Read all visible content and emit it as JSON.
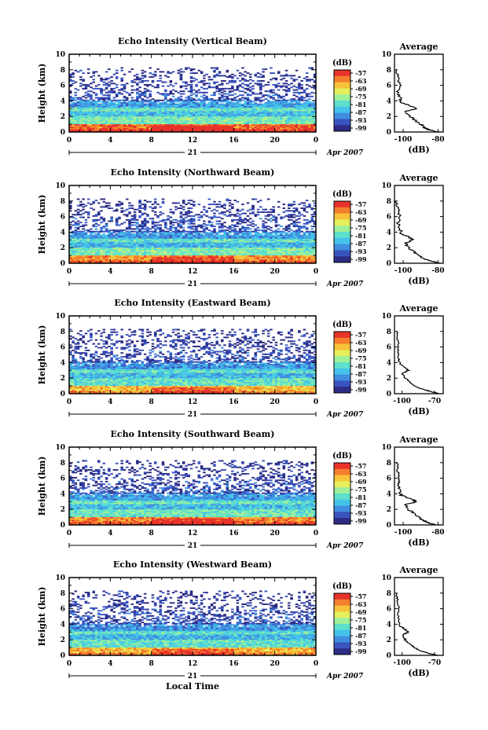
{
  "colors": {
    "scale": [
      "#2c2c85",
      "#3a54bf",
      "#3f8ee0",
      "#44c3ea",
      "#5ee0cc",
      "#9ff09a",
      "#e6ef5c",
      "#f7c23a",
      "#f57e2c",
      "#e8332a"
    ],
    "line": "#000000",
    "background": "#ffffff"
  },
  "chart_data": [
    {
      "type": "heatmap",
      "title": "Echo Intensity (Vertical Beam)",
      "ylabel": "Height (km)",
      "ylim": [
        0,
        10
      ],
      "yticks": [
        "0",
        "2",
        "4",
        "6",
        "8",
        "10"
      ],
      "xlim": [
        0,
        24
      ],
      "xticks": [
        "0",
        "4",
        "8",
        "12",
        "16",
        "20",
        "0"
      ],
      "date_day": "21",
      "date_month": "Apr 2007",
      "colorbar": {
        "unit": "(dB)",
        "ticks": [
          "-57",
          "-63",
          "-69",
          "-75",
          "-81",
          "-87",
          "-93",
          "-99"
        ]
      },
      "heights_km": [
        0.5,
        1.5,
        2.5,
        3.5,
        4.5,
        5.5,
        6.5,
        7.5
      ],
      "intensity_db_by_height": [
        -60,
        -78,
        -85,
        -88,
        -95,
        -97,
        -97,
        -98
      ],
      "average_profile": {
        "title": "Average",
        "xlabel": "(dB)",
        "xticks": [
          "-100",
          "-80"
        ],
        "xlim": [
          -105,
          -77
        ],
        "yticks": [
          "0",
          "2",
          "4",
          "6",
          "8",
          "10"
        ],
        "ylim": [
          0,
          10
        ],
        "height_km": [
          0,
          0.3,
          0.6,
          1.0,
          1.5,
          2.0,
          2.6,
          3.0,
          3.4,
          3.8,
          4.5,
          5.2,
          6.0,
          7.0,
          8.0
        ],
        "db": [
          -80,
          -85,
          -88,
          -90,
          -93,
          -96,
          -99,
          -93,
          -96,
          -101,
          -102,
          -103,
          -102,
          -103,
          -104
        ]
      }
    },
    {
      "type": "heatmap",
      "title": "Echo Intensity (Northward Beam)",
      "ylabel": "Height (km)",
      "ylim": [
        0,
        10
      ],
      "yticks": [
        "0",
        "2",
        "4",
        "6",
        "8",
        "10"
      ],
      "xlim": [
        0,
        24
      ],
      "xticks": [
        "0",
        "4",
        "8",
        "12",
        "16",
        "20",
        "0"
      ],
      "date_day": "21",
      "date_month": "Apr 2007",
      "colorbar": {
        "unit": "(dB)",
        "ticks": [
          "-57",
          "-63",
          "-69",
          "-75",
          "-81",
          "-87",
          "-93",
          "-99"
        ]
      },
      "heights_km": [
        0.5,
        1.5,
        2.5,
        3.5,
        4.5,
        5.5,
        6.5,
        7.5
      ],
      "intensity_db_by_height": [
        -63,
        -78,
        -86,
        -88,
        -95,
        -96,
        -97,
        -98
      ],
      "average_profile": {
        "title": "Average",
        "xlabel": "(dB)",
        "xticks": [
          "-100",
          "-80"
        ],
        "xlim": [
          -105,
          -77
        ],
        "yticks": [
          "0",
          "2",
          "4",
          "6",
          "8",
          "10"
        ],
        "ylim": [
          0,
          10
        ],
        "height_km": [
          0,
          0.3,
          0.6,
          1.0,
          1.5,
          2.0,
          2.6,
          3.0,
          3.4,
          3.8,
          4.5,
          5.2,
          6.0,
          7.0,
          8.0
        ],
        "db": [
          -79,
          -84,
          -88,
          -91,
          -94,
          -97,
          -99,
          -94,
          -97,
          -101,
          -102,
          -103,
          -102,
          -103,
          -104
        ]
      }
    },
    {
      "type": "heatmap",
      "title": "Echo Intensity (Eastward Beam)",
      "ylabel": "Height (km)",
      "ylim": [
        0,
        10
      ],
      "yticks": [
        "0",
        "2",
        "4",
        "6",
        "8",
        "10"
      ],
      "xlim": [
        0,
        24
      ],
      "xticks": [
        "0",
        "4",
        "8",
        "12",
        "16",
        "20",
        "0"
      ],
      "date_day": "21",
      "date_month": "Apr 2007",
      "colorbar": {
        "unit": "(dB)",
        "ticks": [
          "-57",
          "-63",
          "-69",
          "-75",
          "-81",
          "-87",
          "-93",
          "-99"
        ]
      },
      "heights_km": [
        0.5,
        1.5,
        2.5,
        3.5,
        4.5,
        5.5,
        6.5,
        7.5
      ],
      "intensity_db_by_height": [
        -66,
        -80,
        -86,
        -89,
        -95,
        -96,
        -97,
        -98
      ],
      "average_profile": {
        "title": "Average",
        "xlabel": "(dB)",
        "xticks": [
          "-100",
          "-70"
        ],
        "xlim": [
          -107,
          -62
        ],
        "yticks": [
          "0",
          "2",
          "4",
          "6",
          "8",
          "10"
        ],
        "ylim": [
          0,
          10
        ],
        "height_km": [
          0,
          0.3,
          0.6,
          1.0,
          1.5,
          2.0,
          2.6,
          3.0,
          3.4,
          3.8,
          4.5,
          5.2,
          6.0,
          7.0,
          8.0
        ],
        "db": [
          -66,
          -74,
          -82,
          -88,
          -93,
          -97,
          -100,
          -94,
          -98,
          -102,
          -103,
          -104,
          -103,
          -104,
          -105
        ]
      }
    },
    {
      "type": "heatmap",
      "title": "Echo Intensity (Southward Beam)",
      "ylabel": "Height (km)",
      "ylim": [
        0,
        10
      ],
      "yticks": [
        "0",
        "2",
        "4",
        "6",
        "8",
        "10"
      ],
      "xlim": [
        0,
        24
      ],
      "xticks": [
        "0",
        "4",
        "8",
        "12",
        "16",
        "20",
        "0"
      ],
      "date_day": "21",
      "date_month": "Apr 2007",
      "colorbar": {
        "unit": "(dB)",
        "ticks": [
          "-57",
          "-63",
          "-69",
          "-75",
          "-81",
          "-87",
          "-93",
          "-99"
        ]
      },
      "heights_km": [
        0.5,
        1.5,
        2.5,
        3.5,
        4.5,
        5.5,
        6.5,
        7.5
      ],
      "intensity_db_by_height": [
        -62,
        -79,
        -85,
        -88,
        -95,
        -96,
        -97,
        -98
      ],
      "average_profile": {
        "title": "Average",
        "xlabel": "(dB)",
        "xticks": [
          "-100",
          "-80"
        ],
        "xlim": [
          -105,
          -77
        ],
        "yticks": [
          "0",
          "2",
          "4",
          "6",
          "8",
          "10"
        ],
        "ylim": [
          0,
          10
        ],
        "height_km": [
          0,
          0.3,
          0.6,
          1.0,
          1.5,
          2.0,
          2.6,
          3.0,
          3.4,
          3.8,
          4.5,
          5.2,
          6.0,
          7.0,
          8.0
        ],
        "db": [
          -81,
          -86,
          -89,
          -91,
          -94,
          -97,
          -99,
          -92,
          -96,
          -101,
          -102,
          -103,
          -102,
          -103,
          -104
        ]
      }
    },
    {
      "type": "heatmap",
      "title": "Echo Intensity (Westward Beam)",
      "ylabel": "Height (km)",
      "ylim": [
        0,
        10
      ],
      "yticks": [
        "0",
        "2",
        "4",
        "6",
        "8",
        "10"
      ],
      "xlim": [
        0,
        24
      ],
      "xticks": [
        "0",
        "4",
        "8",
        "12",
        "16",
        "20",
        "0"
      ],
      "date_day": "21",
      "date_month": "Apr 2007",
      "xlabel": "Local Time",
      "colorbar": {
        "unit": "(dB)",
        "ticks": [
          "-57",
          "-63",
          "-69",
          "-75",
          "-81",
          "-87",
          "-93",
          "-99"
        ]
      },
      "heights_km": [
        0.5,
        1.5,
        2.5,
        3.5,
        4.5,
        5.5,
        6.5,
        7.5
      ],
      "intensity_db_by_height": [
        -66,
        -80,
        -86,
        -89,
        -95,
        -96,
        -97,
        -98
      ],
      "average_profile": {
        "title": "Average",
        "xlabel": "(dB)",
        "xticks": [
          "-100",
          "-70"
        ],
        "xlim": [
          -107,
          -62
        ],
        "yticks": [
          "0",
          "2",
          "4",
          "6",
          "8",
          "10"
        ],
        "ylim": [
          0,
          10
        ],
        "height_km": [
          0,
          0.3,
          0.6,
          1.0,
          1.5,
          2.0,
          2.6,
          3.0,
          3.4,
          3.8,
          4.5,
          5.2,
          6.0,
          7.0,
          8.0
        ],
        "db": [
          -68,
          -76,
          -83,
          -89,
          -93,
          -97,
          -100,
          -94,
          -98,
          -102,
          -103,
          -104,
          -103,
          -104,
          -105
        ]
      }
    }
  ]
}
